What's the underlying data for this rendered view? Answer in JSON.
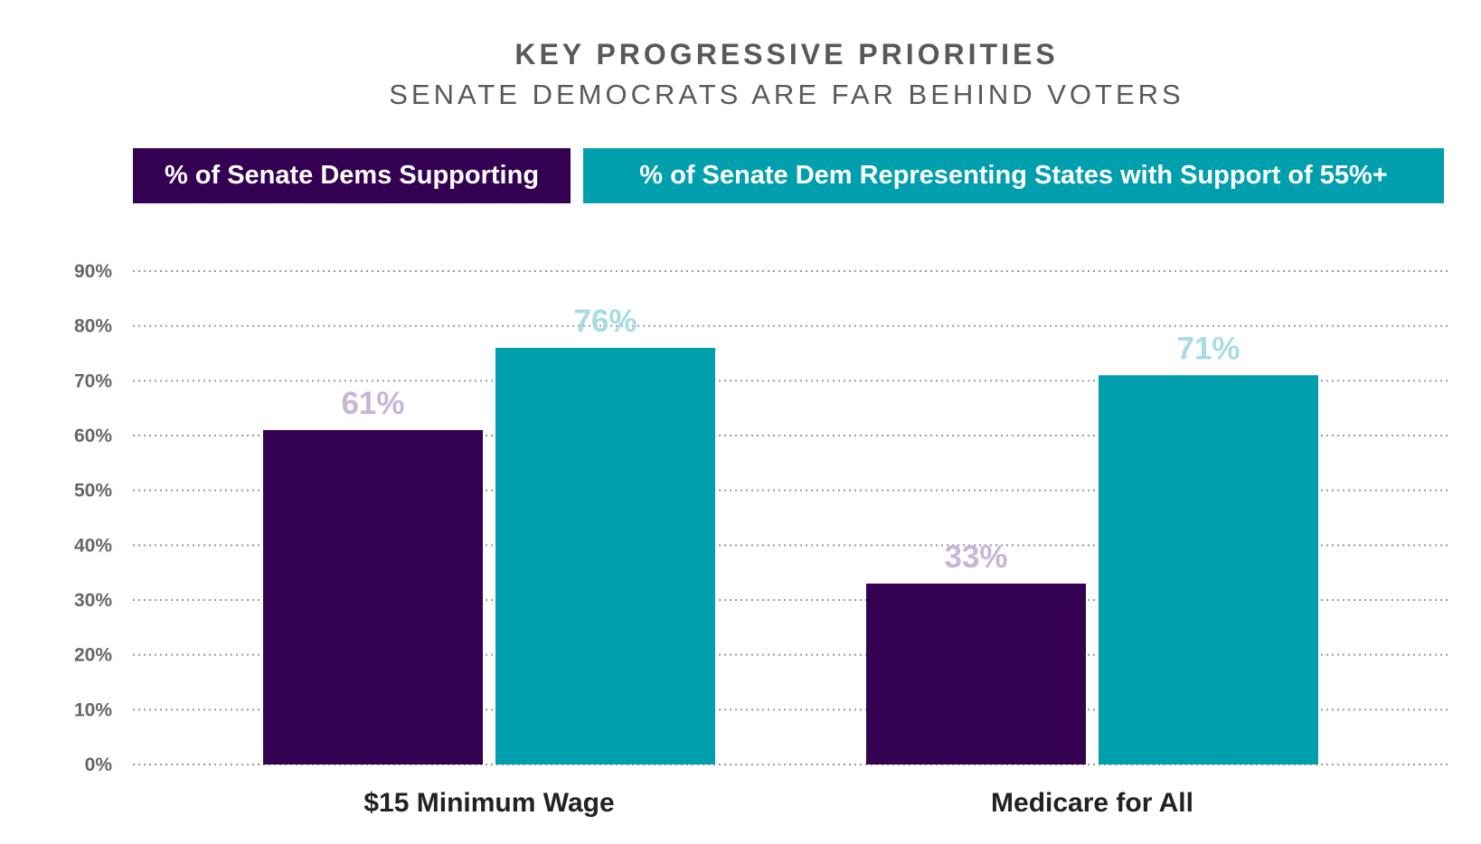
{
  "header": {
    "title": "KEY PROGRESSIVE PRIORITIES",
    "subtitle": "SENATE DEMOCRATS ARE FAR BEHIND VOTERS"
  },
  "legend": [
    {
      "label": "% of Senate Dems Supporting",
      "color": "#330052"
    },
    {
      "label": "% of Senate Dem Representing States with Support of 55%+",
      "color": "#009fae"
    }
  ],
  "chart_data": {
    "type": "bar",
    "title": "KEY PROGRESSIVE PRIORITIES",
    "subtitle": "SENATE DEMOCRATS ARE FAR BEHIND VOTERS",
    "categories": [
      "$15 Minimum Wage",
      "Medicare for All"
    ],
    "series": [
      {
        "name": "% of Senate Dems Supporting",
        "values": [
          61,
          33
        ],
        "labels": [
          "61%",
          "33%"
        ],
        "color": "#330052",
        "label_color": "#c6b7d6"
      },
      {
        "name": "% of Senate Dem Representing States with Support of 55%+",
        "values": [
          76,
          71
        ],
        "labels": [
          "76%",
          "71%"
        ],
        "color": "#009fae",
        "label_color": "#a7dde2"
      }
    ],
    "ylim": [
      0,
      90
    ],
    "yticks": [
      "0%",
      "10%",
      "20%",
      "30%",
      "40%",
      "50%",
      "60%",
      "70%",
      "80%",
      "90%"
    ],
    "grid": true,
    "legend_position": "top"
  }
}
